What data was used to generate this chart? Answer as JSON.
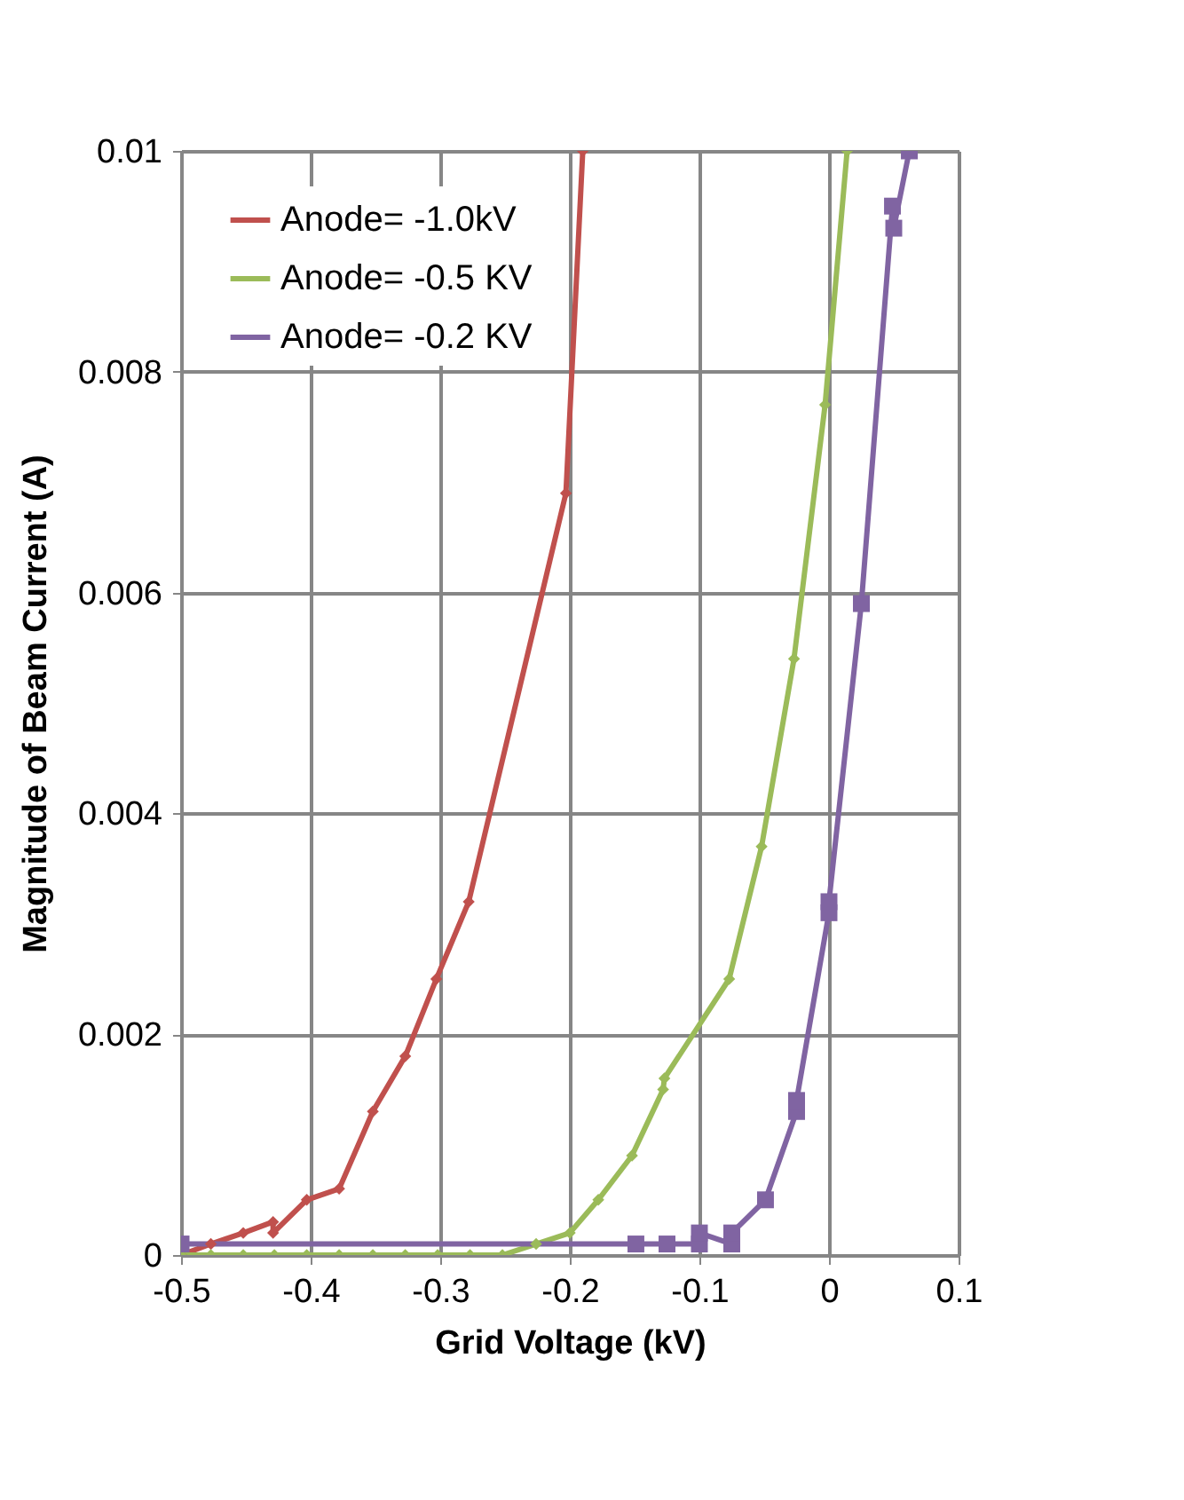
{
  "chart_data": {
    "type": "line",
    "xlabel": "Grid Voltage (kV)",
    "ylabel": "Magnitude of Beam Current (A)",
    "xlim": [
      -0.5,
      0.1
    ],
    "xticks": [
      -0.5,
      -0.4,
      -0.3,
      -0.2,
      -0.1,
      0,
      0.1
    ],
    "ylim": [
      0,
      0.01
    ],
    "yticks": [
      0,
      0.002,
      0.004,
      0.006,
      0.008,
      0.01
    ],
    "grid": true,
    "legend": "top left",
    "line_style": "solid",
    "series": [
      {
        "name": "Anode= -1.0kV",
        "color": "#c0504d",
        "marker": "diamond",
        "x": [
          -0.5,
          -0.477,
          -0.452,
          -0.429,
          -0.429,
          -0.403,
          -0.378,
          -0.352,
          -0.327,
          -0.303,
          -0.278,
          -0.203,
          -0.19
        ],
        "values": [
          0,
          0.0001,
          0.0002,
          0.0003,
          0.0002,
          0.0005,
          0.0006,
          0.0013,
          0.0018,
          0.0025,
          0.0032,
          0.0069,
          0.01
        ]
      },
      {
        "name": "Anode= -0.5 KV",
        "color": "#9bbb59",
        "marker": "diamond",
        "x": [
          -0.5,
          -0.477,
          -0.452,
          -0.428,
          -0.403,
          -0.378,
          -0.352,
          -0.327,
          -0.302,
          -0.277,
          -0.252,
          -0.226,
          -0.2,
          -0.178,
          -0.152,
          -0.128,
          -0.127,
          -0.077,
          -0.052,
          -0.027,
          -0.003,
          0.014
        ],
        "values": [
          0,
          0,
          0,
          0,
          0,
          0,
          0,
          0,
          0,
          0,
          0,
          0.0001,
          0.0002,
          0.0005,
          0.0009,
          0.0015,
          0.0016,
          0.0025,
          0.0037,
          0.0054,
          0.0077,
          0.01
        ]
      },
      {
        "name": "Anode= -0.2 KV",
        "color": "#8064a2",
        "marker": "square",
        "x": [
          -0.5,
          -0.149,
          -0.125,
          -0.1,
          -0.1,
          -0.075,
          -0.075,
          -0.049,
          -0.025,
          -0.025,
          0,
          0,
          0.025,
          0.049,
          0.05,
          0.062
        ],
        "values": [
          0.0001,
          0.0001,
          0.0001,
          0.0001,
          0.0002,
          0.0001,
          0.0002,
          0.0005,
          0.0013,
          0.0014,
          0.0031,
          0.0032,
          0.0059,
          0.0095,
          0.0093,
          0.01
        ]
      }
    ]
  }
}
